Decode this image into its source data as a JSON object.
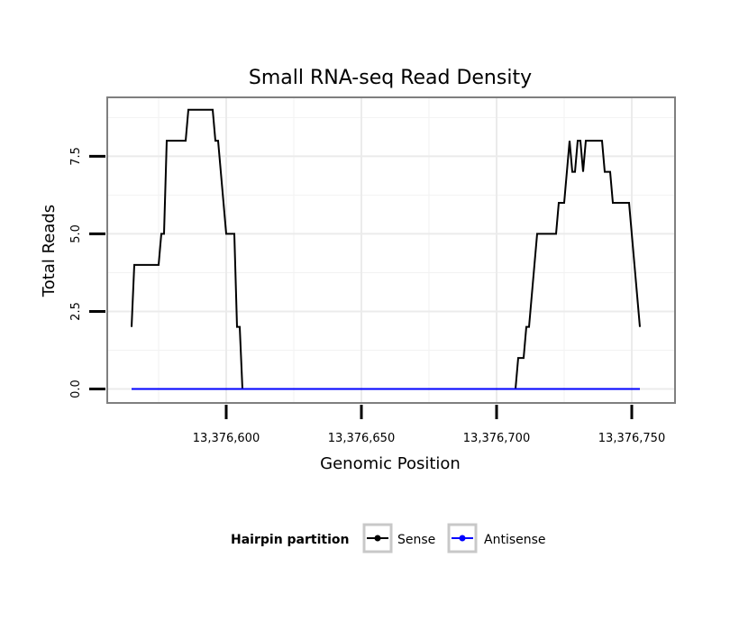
{
  "chart_data": {
    "type": "line",
    "title": "Small RNA-seq Read Density",
    "xlabel": "Genomic Position",
    "ylabel": "Total Reads",
    "xlim": [
      13376556,
      13376766
    ],
    "ylim": [
      -0.45,
      9.4
    ],
    "x_ticks": [
      13376600,
      13376650,
      13376700,
      13376750
    ],
    "x_tick_labels": [
      "13,376,600",
      "13,376,650",
      "13,376,700",
      "13,376,750"
    ],
    "y_ticks": [
      0,
      2.5,
      5,
      7.5
    ],
    "y_tick_labels": [
      "0.0",
      "2.5",
      "5.0",
      "7.5"
    ],
    "grid": true,
    "legend": {
      "title": "Hairpin partition",
      "position": "bottom",
      "entries": [
        "Sense",
        "Antisense"
      ]
    },
    "series": [
      {
        "name": "Sense",
        "color": "#000000",
        "x": [
          13376565,
          13376566,
          13376567,
          13376575,
          13376576,
          13376577,
          13376578,
          13376585,
          13376586,
          13376588,
          13376595,
          13376596,
          13376597,
          13376598,
          13376600,
          13376603,
          13376604,
          13376605,
          13376606,
          13376608,
          13376609,
          13376658,
          13376707,
          13376708,
          13376710,
          13376711,
          13376712,
          13376714,
          13376715,
          13376716,
          13376722,
          13376723,
          13376725,
          13376726,
          13376727,
          13376728,
          13376729,
          13376730,
          13376731,
          13376732,
          13376733,
          13376734,
          13376735,
          13376736,
          13376739,
          13376740,
          13376742,
          13376743,
          13376744,
          13376749,
          13376750,
          13376751,
          13376752,
          13376753
        ],
        "values": [
          2,
          4,
          4,
          4,
          5,
          5,
          8,
          8,
          9,
          9,
          9,
          8,
          8,
          7,
          5,
          5,
          2,
          2,
          0,
          0,
          0,
          0,
          0,
          1,
          1,
          2,
          2,
          4,
          5,
          5,
          5,
          6,
          6,
          7,
          8,
          7,
          7,
          8,
          8,
          7,
          8,
          8,
          8,
          8,
          8,
          7,
          7,
          6,
          6,
          6,
          5,
          4,
          3,
          2
        ]
      },
      {
        "name": "Antisense",
        "color": "#0000ff",
        "x": [
          13376565,
          13376753
        ],
        "values": [
          0,
          0
        ]
      }
    ]
  }
}
